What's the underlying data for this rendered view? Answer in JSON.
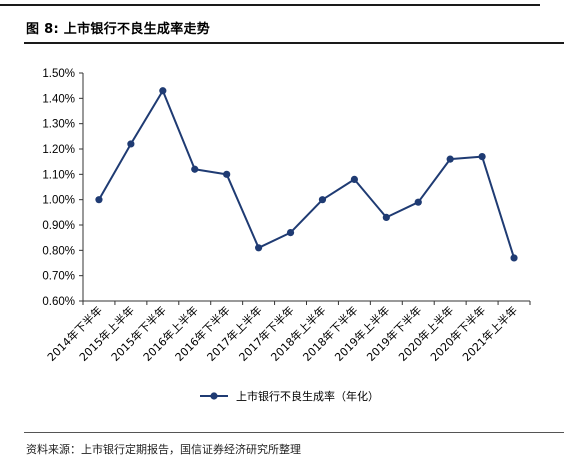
{
  "figure": {
    "title": "图 8:  上市银行不良生成率走势",
    "source": "资料来源：上市银行定期报告，国信证券经济研究所整理"
  },
  "chart_data": {
    "type": "line",
    "title": "",
    "xlabel": "",
    "ylabel": "",
    "categories": [
      "2014年下半年",
      "2015年上半年",
      "2015年下半年",
      "2016年上半年",
      "2016年下半年",
      "2017年上半年",
      "2017年下半年",
      "2018年上半年",
      "2018年下半年",
      "2019年上半年",
      "2019年下半年",
      "2020年上半年",
      "2020年下半年",
      "2021年上半年"
    ],
    "series": [
      {
        "name": "上市银行不良生成率（年化）",
        "values": [
          1.0,
          1.22,
          1.43,
          1.12,
          1.1,
          0.81,
          0.87,
          1.0,
          1.08,
          0.93,
          0.99,
          1.16,
          1.17,
          0.77
        ],
        "color": "#1f3b73"
      }
    ],
    "ylim": [
      0.6,
      1.5
    ],
    "yticks": [
      "0.60%",
      "0.70%",
      "0.80%",
      "0.90%",
      "1.00%",
      "1.10%",
      "1.20%",
      "1.30%",
      "1.40%",
      "1.50%"
    ],
    "grid": false,
    "legend_position": "bottom"
  }
}
